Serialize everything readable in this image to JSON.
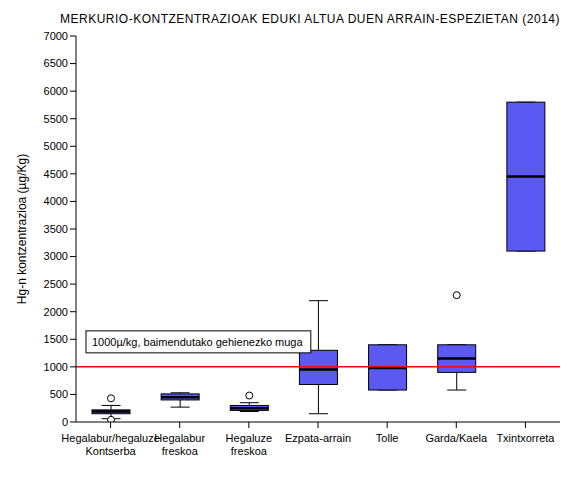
{
  "chart_data": {
    "type": "boxplot",
    "title": "MERKURIO-KONTZENTRAZIOAK EDUKI ALTUA DUEN ARRAIN-ESPEZIETAN (2014)",
    "y_label": "Hg-n kontzentrazioa (µg/Kg)",
    "categories": [
      "Hegalabur/hegaluze Kontserba",
      "Hegalabur freskoa",
      "Hegaluze freskoa",
      "Ezpata-arrain",
      "Tolle",
      "Garda/Kaela",
      "Txintxorreta"
    ],
    "boxes": [
      {
        "min": 60,
        "q1": 150,
        "median": 190,
        "q3": 220,
        "max": 300,
        "outliers": [
          430,
          40
        ]
      },
      {
        "min": 270,
        "q1": 400,
        "median": 450,
        "q3": 510,
        "max": 530,
        "outliers": []
      },
      {
        "min": 190,
        "q1": 210,
        "median": 250,
        "q3": 300,
        "max": 350,
        "outliers": [
          480
        ]
      },
      {
        "min": 150,
        "q1": 680,
        "median": 950,
        "q3": 1300,
        "max": 2200,
        "outliers": []
      },
      {
        "min": 580,
        "q1": 580,
        "median": 980,
        "q3": 1400,
        "max": 1400,
        "outliers": []
      },
      {
        "min": 580,
        "q1": 900,
        "median": 1150,
        "q3": 1400,
        "max": 1400,
        "outliers": [
          2300
        ]
      },
      {
        "min": 3100,
        "q1": 3100,
        "median": 4450,
        "q3": 5800,
        "max": 5800,
        "outliers": []
      }
    ],
    "color": "#5a5af2",
    "hline": {
      "y": 1000,
      "label": "1000µ/kg, baimendutako gehienezko muga",
      "color": "#ff0000"
    },
    "ylim": [
      0,
      7000
    ],
    "yticks": [
      0,
      500,
      1000,
      1500,
      2000,
      2500,
      3000,
      3500,
      4000,
      4500,
      5000,
      5500,
      6000,
      6500,
      7000
    ],
    "grid": false
  }
}
